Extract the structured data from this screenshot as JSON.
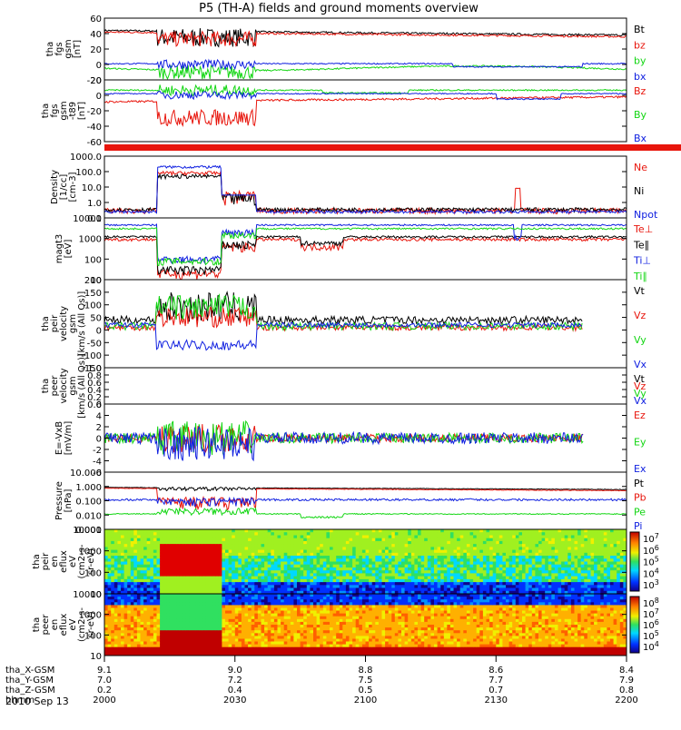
{
  "chart_data": {
    "type": "line",
    "title": "P5 (TH-A) fields and ground moments overview",
    "date": "2010 Sep 13",
    "colors": {
      "black": "#000000",
      "red": "#e8150c",
      "green": "#12d612",
      "blue": "#1020e0",
      "yellow": "#f2ee0a",
      "axis": "#000000"
    },
    "time_axis": {
      "hhmm": [
        "2000",
        "2030",
        "2100",
        "2130",
        "2200"
      ],
      "rows": [
        {
          "label": "tha_X-GSM",
          "values": [
            "9.1",
            "9.0",
            "8.8",
            "8.6",
            "8.4"
          ]
        },
        {
          "label": "tha_Y-GSM",
          "values": [
            "7.0",
            "7.2",
            "7.5",
            "7.7",
            "7.9"
          ]
        },
        {
          "label": "tha_Z-GSM",
          "values": [
            "0.2",
            "0.4",
            "0.5",
            "0.7",
            "0.8"
          ]
        },
        {
          "label": "hhmm",
          "values": [
            "2000",
            "2030",
            "2100",
            "2130",
            "2200"
          ]
        }
      ]
    },
    "panels": [
      {
        "id": "fgs",
        "ylabel": [
          "tha",
          "fgs",
          "gsm",
          "[nT]"
        ],
        "ylim": [
          -20,
          60
        ],
        "ticks": [
          "60",
          "40",
          "20",
          "0",
          "-20"
        ],
        "series": [
          {
            "name": "Bt",
            "color": "black"
          },
          {
            "name": "bz",
            "color": "red"
          },
          {
            "name": "by",
            "color": "green"
          },
          {
            "name": "bx",
            "color": "blue"
          }
        ]
      },
      {
        "id": "fgs_t89",
        "ylabel": [
          "tha",
          "fgs",
          "gsm",
          "-t89",
          "[nT]"
        ],
        "ylim": [
          -70,
          20
        ],
        "ticks": [
          "20",
          "0",
          "-20",
          "-40",
          "-60"
        ],
        "series": [
          {
            "name": "Bz",
            "color": "red"
          },
          {
            "name": "By",
            "color": "green"
          },
          {
            "name": "Bx",
            "color": "blue"
          }
        ]
      },
      {
        "id": "bar",
        "mode_bar": {
          "red_until_min": 145
        }
      },
      {
        "id": "density",
        "ylabel": [
          "Density",
          "[1/cc]",
          "[cm-3]"
        ],
        "ticks": [
          "1000.0",
          "100.0",
          "10.0",
          "1.0",
          "0.1"
        ],
        "series": [
          {
            "name": "Ne",
            "color": "red"
          },
          {
            "name": "Ni",
            "color": "black"
          },
          {
            "name": "Npot",
            "color": "blue"
          }
        ]
      },
      {
        "id": "temp",
        "ylabel": [
          "magt3",
          "[eV]"
        ],
        "ticks": [
          "10000",
          "1000",
          "100",
          "10"
        ],
        "series": [
          {
            "name": "Te⊥",
            "color": "red"
          },
          {
            "name": "Te∥",
            "color": "black"
          },
          {
            "name": "Ti⊥",
            "color": "blue"
          },
          {
            "name": "Ti∥",
            "color": "green"
          }
        ]
      },
      {
        "id": "ivel",
        "ylabel": [
          "tha",
          "peir",
          "velocity",
          "gsm",
          "[km/s (All Qs)]"
        ],
        "ylim": [
          -150,
          200
        ],
        "ticks": [
          "200",
          "150",
          "100",
          "50",
          "0",
          "-50",
          "-100",
          "-150"
        ],
        "series": [
          {
            "name": "Vt",
            "color": "black"
          },
          {
            "name": "Vz",
            "color": "red"
          },
          {
            "name": "Vy",
            "color": "green"
          },
          {
            "name": "Vx",
            "color": "blue"
          }
        ]
      },
      {
        "id": "evel",
        "ylabel": [
          "tha",
          "peer",
          "velocity",
          "gsm",
          "[km/s (All Qs)]"
        ],
        "ylim": [
          0,
          1
        ],
        "ticks": [
          "1.0",
          "0.8",
          "0.6",
          "0.4",
          "0.2",
          "0.0"
        ],
        "series": [
          {
            "name": "Vt",
            "color": "black"
          },
          {
            "name": "Vz",
            "color": "red"
          },
          {
            "name": "Vy",
            "color": "green"
          },
          {
            "name": "Vx",
            "color": "blue"
          }
        ]
      },
      {
        "id": "efield",
        "ylabel": [
          "E=-VxB",
          "[mV/m]"
        ],
        "ylim": [
          -6,
          6
        ],
        "ticks": [
          "6",
          "4",
          "2",
          "0",
          "-2",
          "-4",
          "-6"
        ],
        "series": [
          {
            "name": "Ez",
            "color": "red"
          },
          {
            "name": "Ey",
            "color": "green"
          },
          {
            "name": "Ex",
            "color": "blue"
          }
        ]
      },
      {
        "id": "pressure",
        "ylabel": [
          "Pressure",
          "[nPa]"
        ],
        "ticks": [
          "10.000",
          "1.000",
          "0.100",
          "0.010",
          "0.001"
        ],
        "series": [
          {
            "name": "Pt",
            "color": "black"
          },
          {
            "name": "Pb",
            "color": "red"
          },
          {
            "name": "Pe",
            "color": "green"
          },
          {
            "name": "Pi",
            "color": "blue"
          }
        ]
      },
      {
        "id": "ispec",
        "ylabel": [
          "tha",
          "peir",
          "en",
          "eflux",
          "eV",
          "(cm2-s-",
          "sr-eV)"
        ],
        "ticks": [
          "10000",
          "1000",
          "100",
          "10"
        ],
        "colorbar": [
          "10",
          "10",
          "10",
          "10",
          "10"
        ],
        "colorbar_exp": [
          "7",
          "6",
          "5",
          "4",
          "3"
        ]
      },
      {
        "id": "espec",
        "ylabel": [
          "tha",
          "peer",
          "en",
          "eflux",
          "eV",
          "(cm2-s-",
          "sr-eV)"
        ],
        "ticks": [
          "10000",
          "1000",
          "100",
          "10"
        ],
        "colorbar": [
          "10",
          "10",
          "10",
          "10",
          "10"
        ],
        "colorbar_exp": [
          "8",
          "7",
          "6",
          "5",
          "4"
        ]
      }
    ]
  }
}
